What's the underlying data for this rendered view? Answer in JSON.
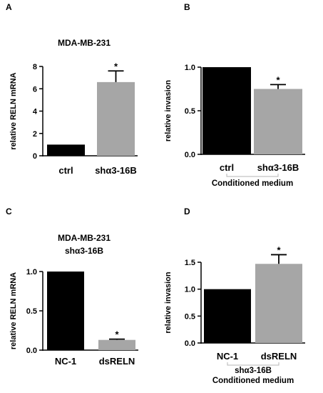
{
  "colors": {
    "control_bar": "#000000",
    "treated_bar": "#a6a6a6",
    "axis": "#000000",
    "bracket": "#b4b4b4"
  },
  "chart_data": [
    {
      "panel": "A",
      "type": "bar",
      "title": "MDA-MB-231",
      "subtitle": "",
      "ylabel": "relative RELN mRNA",
      "categories": [
        "ctrl",
        "shα3-16B"
      ],
      "values": [
        1.0,
        6.6
      ],
      "errors": [
        0,
        1.0
      ],
      "significance": [
        "",
        "*"
      ],
      "ylim": [
        0,
        8
      ],
      "yticks": [
        "0",
        "2",
        "4",
        "6",
        "8"
      ],
      "bracket_label": "",
      "bracket_sublabel": ""
    },
    {
      "panel": "B",
      "type": "bar",
      "title": "",
      "subtitle": "",
      "ylabel": "relative invasion",
      "categories": [
        "ctrl",
        "shα3-16B"
      ],
      "values": [
        1.0,
        0.75
      ],
      "errors": [
        0,
        0.05
      ],
      "significance": [
        "",
        "*"
      ],
      "ylim": [
        0,
        1.0
      ],
      "yticks": [
        "0.0",
        "0.5",
        "1.0"
      ],
      "bracket_label": "Conditioned medium",
      "bracket_sublabel": ""
    },
    {
      "panel": "C",
      "type": "bar",
      "title": "MDA-MB-231",
      "subtitle": "shα3-16B",
      "ylabel": "relative RELN mRNA",
      "categories": [
        "NC-1",
        "dsRELN"
      ],
      "values": [
        1.0,
        0.13
      ],
      "errors": [
        0,
        0.01
      ],
      "significance": [
        "",
        "*"
      ],
      "ylim": [
        0,
        1.0
      ],
      "yticks": [
        "0.0",
        "0.5",
        "1.0"
      ],
      "bracket_label": "",
      "bracket_sublabel": ""
    },
    {
      "panel": "D",
      "type": "bar",
      "title": "",
      "subtitle": "",
      "ylabel": "relative invasion",
      "categories": [
        "NC-1",
        "dsRELN"
      ],
      "values": [
        1.0,
        1.47
      ],
      "errors": [
        0,
        0.17
      ],
      "significance": [
        "",
        "*"
      ],
      "ylim": [
        0,
        1.5
      ],
      "yticks": [
        "0.0",
        "0.5",
        "1.0",
        "1.5"
      ],
      "bracket_label": "shα3-16B",
      "bracket_sublabel": "Conditioned medium"
    }
  ]
}
